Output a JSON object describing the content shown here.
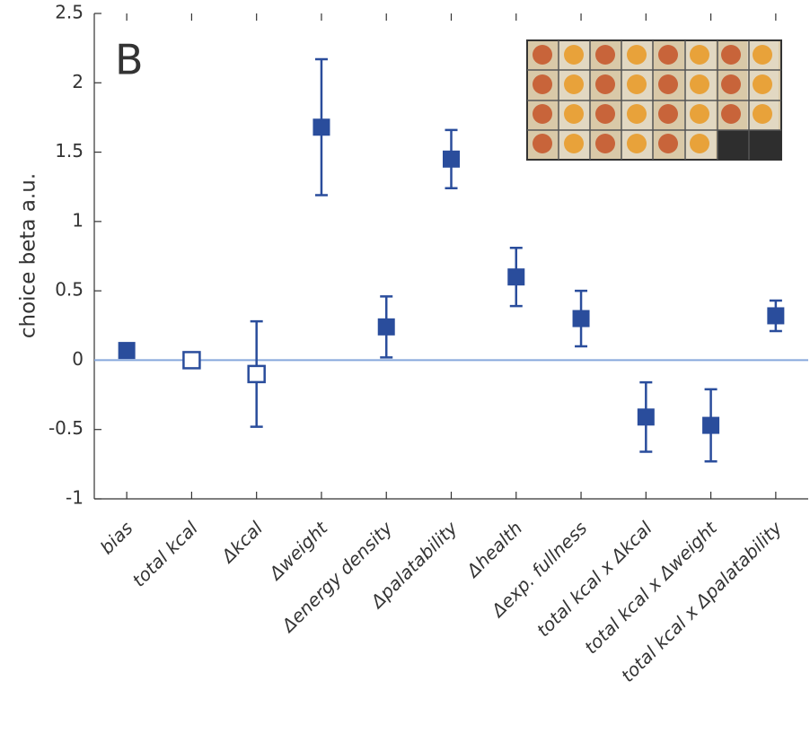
{
  "chart_data": {
    "type": "errorbar",
    "panel_label": "B",
    "ylabel": "choice beta a.u.",
    "categories": [
      "bias",
      "total kcal",
      "Δkcal",
      "Δweight",
      "Δenergy density",
      "Δpalatability",
      "Δhealth",
      "Δexp. fullness",
      "total kcal x  Δkcal",
      "total kcal x  Δweight",
      "total kcal x  Δpalatability"
    ],
    "values": [
      0.07,
      0.0,
      -0.1,
      1.68,
      0.24,
      1.45,
      0.6,
      0.3,
      -0.41,
      -0.47,
      0.32
    ],
    "errors": [
      0.03,
      0.02,
      0.38,
      0.49,
      0.22,
      0.21,
      0.21,
      0.2,
      0.25,
      0.26,
      0.11
    ],
    "filled": [
      true,
      false,
      false,
      true,
      true,
      true,
      true,
      true,
      true,
      true,
      true
    ],
    "color": "#2a4d9c",
    "zero_line_color": "#86a8dc",
    "ylim": [
      -1,
      2.5
    ],
    "yticks": [
      2.5,
      2,
      1.5,
      1,
      0.5,
      0,
      -0.5,
      -1
    ]
  }
}
